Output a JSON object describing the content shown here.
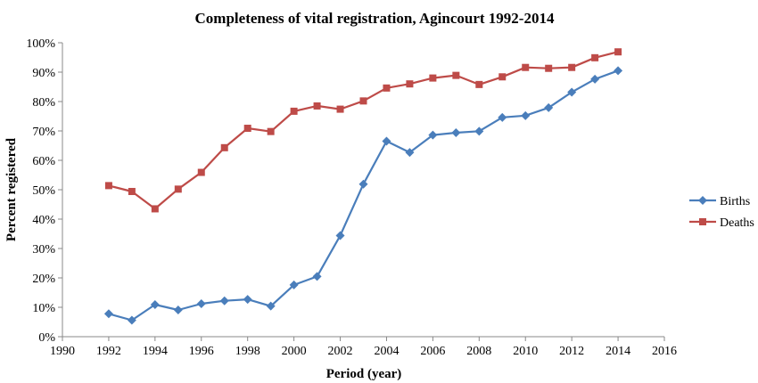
{
  "chart_data": {
    "type": "line",
    "title": "Completeness of vital registration, Agincourt 1992-2014",
    "xlabel": "Period (year)",
    "ylabel": "Percent registered",
    "xlim": [
      1990,
      2016
    ],
    "ylim": [
      0,
      100
    ],
    "x_ticks": [
      "1990",
      "1992",
      "1994",
      "1996",
      "1998",
      "2000",
      "2002",
      "2004",
      "2006",
      "2008",
      "2010",
      "2012",
      "2014",
      "2016"
    ],
    "y_ticks": [
      "0%",
      "10%",
      "20%",
      "30%",
      "40%",
      "50%",
      "60%",
      "70%",
      "80%",
      "90%",
      "100%"
    ],
    "legend_position": "right",
    "grid": false,
    "x": [
      1992,
      1993,
      1994,
      1995,
      1996,
      1997,
      1998,
      1999,
      2000,
      2001,
      2002,
      2003,
      2004,
      2005,
      2006,
      2007,
      2008,
      2009,
      2010,
      2011,
      2012,
      2013,
      2014
    ],
    "series": [
      {
        "name": "Births",
        "color": "#4a7ebb",
        "marker": "diamond",
        "values": [
          7.8,
          5.6,
          10.9,
          9.1,
          11.2,
          12.2,
          12.7,
          10.4,
          17.6,
          20.5,
          34.4,
          51.9,
          66.5,
          62.7,
          68.6,
          69.4,
          69.9,
          74.6,
          75.2,
          77.9,
          83.2,
          87.6,
          90.5
        ]
      },
      {
        "name": "Deaths",
        "color": "#be4b48",
        "marker": "square",
        "values": [
          51.4,
          49.4,
          43.5,
          50.2,
          55.9,
          64.3,
          70.9,
          69.8,
          76.7,
          78.5,
          77.4,
          80.2,
          84.6,
          86.0,
          88.0,
          88.9,
          85.8,
          88.4,
          91.6,
          91.3,
          91.6,
          94.9,
          96.9
        ]
      }
    ]
  }
}
